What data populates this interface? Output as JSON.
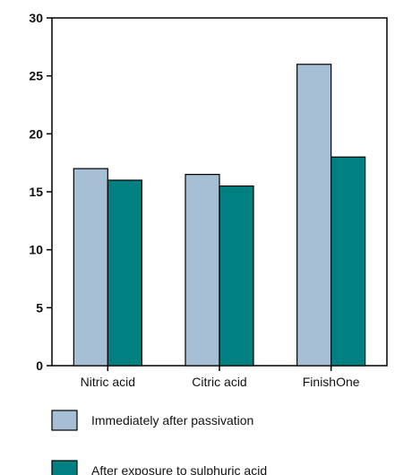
{
  "chart_data": {
    "type": "bar",
    "categories": [
      "Nitric acid",
      "Citric acid",
      "FinishOne"
    ],
    "series": [
      {
        "name": "Immediately after passivation",
        "values": [
          17,
          16.5,
          26
        ],
        "color": "#a6bfd4"
      },
      {
        "name": "After exposure to sulphuric acid",
        "values": [
          16,
          15.5,
          18
        ],
        "color": "#008080"
      }
    ],
    "ylim": [
      0,
      30
    ],
    "yticks": [
      0,
      5,
      10,
      15,
      20,
      25,
      30
    ],
    "grid": false,
    "legend_position": "bottom"
  }
}
